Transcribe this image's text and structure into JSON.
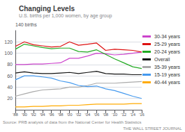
{
  "chart_data": {
    "type": "line",
    "title": "Changing Levels",
    "subtitle": "U.S. births per 1,000 women, by age group",
    "ylabel": "140 births",
    "annotations": [
      "Source: PRB analysis of data from the National Center for Health Statistics",
      "THE WALL STREET JOURNAL"
    ],
    "x": [
      1988,
      1990,
      1992,
      1994,
      1996,
      1998,
      2000,
      2002,
      2004,
      2006,
      2008,
      2010,
      2012,
      2014,
      2016
    ],
    "series": [
      {
        "name": "30-34 years",
        "color": "#cc44cc",
        "values": [
          80,
          80,
          81,
          81,
          82,
          83,
          91,
          91,
          95,
          100,
          99,
          97,
          98,
          100,
          102
        ]
      },
      {
        "name": "25-29 years",
        "color": "#dd1111",
        "values": [
          112,
          120,
          115,
          113,
          111,
          112,
          120,
          114,
          116,
          118,
          105,
          107,
          106,
          105,
          102
        ]
      },
      {
        "name": "20-24 years",
        "color": "#22aa22",
        "values": [
          107,
          116,
          113,
          110,
          108,
          109,
          109,
          103,
          102,
          106,
          98,
          90,
          83,
          76,
          73
        ]
      },
      {
        "name": "Overall",
        "color": "#111111",
        "values": [
          65,
          67,
          65,
          64,
          64,
          65,
          66,
          64,
          66,
          68,
          64,
          63,
          63,
          62,
          62
        ]
      },
      {
        "name": "35-39 years",
        "color": "#aaaaaa",
        "values": [
          24,
          28,
          32,
          35,
          36,
          37,
          40,
          40,
          43,
          47,
          47,
          47,
          48,
          49,
          50
        ]
      },
      {
        "name": "15-19 years",
        "color": "#4499ee",
        "values": [
          53,
          60,
          60,
          58,
          56,
          51,
          48,
          43,
          41,
          42,
          37,
          34,
          29,
          24,
          20
        ]
      },
      {
        "name": "40-44 years",
        "color": "#ffaa00",
        "values": [
          5,
          5,
          6,
          6,
          7,
          7,
          8,
          8,
          9,
          10,
          10,
          10,
          10,
          11,
          11
        ]
      }
    ],
    "xlim": [
      1988,
      2016
    ],
    "xticks": [
      {
        "value": 1988,
        "label": "'88"
      },
      {
        "value": 1990,
        "label": "'90"
      },
      {
        "value": 1992,
        "label": "'92"
      },
      {
        "value": 1994,
        "label": "'94"
      },
      {
        "value": 1996,
        "label": "'96"
      },
      {
        "value": 1998,
        "label": "'98"
      },
      {
        "value": 2000,
        "label": "'00"
      },
      {
        "value": 2002,
        "label": "'02"
      },
      {
        "value": 2004,
        "label": "'04"
      },
      {
        "value": 2006,
        "label": "'06"
      },
      {
        "value": 2008,
        "label": "'08"
      },
      {
        "value": 2010,
        "label": "'10"
      },
      {
        "value": 2012,
        "label": "'12"
      },
      {
        "value": 2014,
        "label": "'14"
      },
      {
        "value": 2016,
        "label": "'16"
      }
    ],
    "ylim": [
      0,
      140
    ],
    "yticks": [
      20,
      40,
      60,
      80,
      100,
      120
    ],
    "grid": true,
    "legend": "right"
  }
}
